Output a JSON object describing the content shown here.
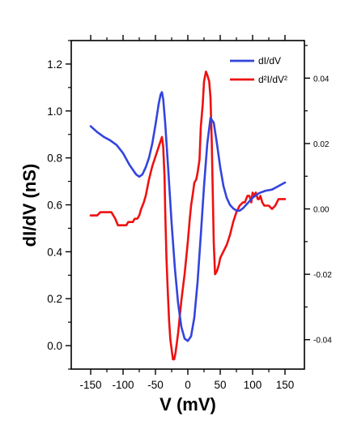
{
  "chart_data": {
    "type": "line",
    "xlabel": "V (mV)",
    "ylabel": "dI/dV (nS)",
    "xlim": [
      -180,
      180
    ],
    "ylim": [
      -0.1,
      1.3
    ],
    "y2lim": [
      -0.049,
      0.0515
    ],
    "x_ticks": [
      -150,
      -100,
      -50,
      0,
      50,
      100,
      150
    ],
    "x_tick_labels": [
      "-150",
      "-100",
      "-50",
      "0",
      "50",
      "100",
      "150"
    ],
    "y_ticks": [
      0.0,
      0.2,
      0.4,
      0.6,
      0.8,
      1.0,
      1.2
    ],
    "y_tick_labels": [
      "0.0",
      "0.2",
      "0.4",
      "0.6",
      "0.8",
      "1.0",
      "1.2"
    ],
    "y2_ticks": [
      -0.04,
      -0.02,
      0.0,
      0.02,
      0.04
    ],
    "y2_tick_labels": [
      "-0.04",
      "-0.02",
      "0.00",
      "0.02",
      "0.04"
    ],
    "legend_position": "top-right",
    "grid": false,
    "series": [
      {
        "name": "dI/dV",
        "axis": "left",
        "color": "#3344dd",
        "x": [
          -150,
          -140,
          -130,
          -120,
          -110,
          -100,
          -95,
          -90,
          -85,
          -80,
          -75,
          -70,
          -65,
          -60,
          -55,
          -50,
          -45,
          -42,
          -40,
          -38,
          -35,
          -30,
          -25,
          -20,
          -15,
          -10,
          -5,
          0,
          5,
          10,
          15,
          20,
          25,
          30,
          35,
          40,
          45,
          50,
          55,
          60,
          65,
          70,
          75,
          80,
          85,
          90,
          95,
          100,
          110,
          120,
          130,
          140,
          150
        ],
        "values": [
          0.935,
          0.91,
          0.89,
          0.875,
          0.855,
          0.82,
          0.795,
          0.77,
          0.75,
          0.73,
          0.72,
          0.73,
          0.76,
          0.8,
          0.86,
          0.94,
          1.03,
          1.07,
          1.08,
          1.05,
          0.95,
          0.74,
          0.52,
          0.33,
          0.18,
          0.08,
          0.03,
          0.02,
          0.04,
          0.12,
          0.27,
          0.47,
          0.68,
          0.86,
          0.97,
          0.95,
          0.86,
          0.76,
          0.68,
          0.63,
          0.6,
          0.585,
          0.575,
          0.575,
          0.585,
          0.6,
          0.615,
          0.63,
          0.65,
          0.66,
          0.665,
          0.68,
          0.695
        ]
      },
      {
        "name": "d²I/dV²",
        "axis": "right",
        "color": "#ee1111",
        "x": [
          -150,
          -140,
          -135,
          -125,
          -118,
          -112,
          -108,
          -100,
          -95,
          -92,
          -88,
          -85,
          -82,
          -78,
          -75,
          -72,
          -68,
          -65,
          -62,
          -60,
          -55,
          -50,
          -45,
          -40,
          -38,
          -36,
          -35,
          -33,
          -31,
          -29,
          -27,
          -25,
          -23,
          -21,
          -19,
          -17,
          -15,
          -13,
          -10,
          -5,
          0,
          3,
          5,
          8,
          10,
          13,
          15,
          18,
          20,
          23,
          25,
          28,
          30,
          33,
          35,
          37,
          40,
          42,
          45,
          48,
          50,
          55,
          60,
          65,
          70,
          75,
          80,
          85,
          88,
          90,
          92,
          95,
          98,
          100,
          102,
          105,
          108,
          110,
          112,
          115,
          118,
          120,
          125,
          130,
          135,
          140,
          145,
          150
        ],
        "values": [
          -0.002,
          -0.002,
          -0.001,
          -0.001,
          -0.001,
          -0.003,
          -0.005,
          -0.005,
          -0.005,
          -0.004,
          -0.004,
          -0.004,
          -0.003,
          -0.003,
          -0.002,
          0.0,
          0.002,
          0.004,
          0.007,
          0.009,
          0.013,
          0.016,
          0.019,
          0.022,
          0.019,
          0.01,
          0.0,
          -0.015,
          -0.025,
          -0.034,
          -0.04,
          -0.043,
          -0.046,
          -0.046,
          -0.044,
          -0.041,
          -0.038,
          -0.034,
          -0.028,
          -0.02,
          -0.01,
          -0.003,
          0.001,
          0.005,
          0.008,
          0.009,
          0.011,
          0.015,
          0.025,
          0.032,
          0.039,
          0.042,
          0.041,
          0.039,
          0.034,
          0.02,
          -0.01,
          -0.02,
          -0.019,
          -0.017,
          -0.015,
          -0.013,
          -0.011,
          -0.008,
          -0.004,
          -0.001,
          0.001,
          0.002,
          0.002,
          0.003,
          0.004,
          0.004,
          0.002,
          0.005,
          0.004,
          0.005,
          0.003,
          0.003,
          0.004,
          0.002,
          0.001,
          0.001,
          0.001,
          0.0,
          0.001,
          0.003,
          0.003,
          0.003
        ]
      }
    ]
  }
}
